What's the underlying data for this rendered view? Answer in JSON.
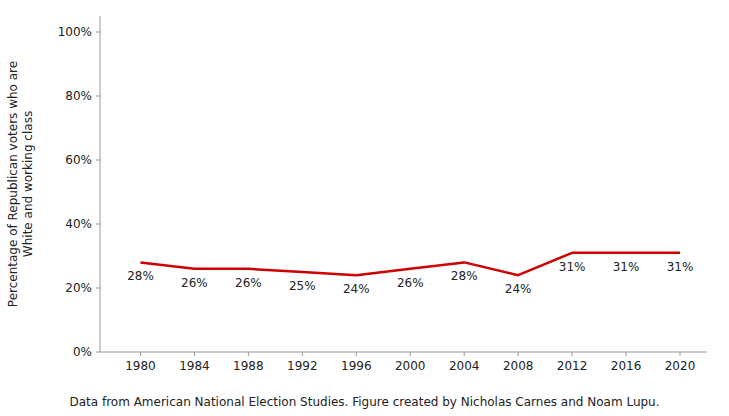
{
  "chart_data": {
    "type": "line",
    "x": [
      1980,
      1984,
      1988,
      1992,
      1996,
      2000,
      2004,
      2008,
      2012,
      2016,
      2020
    ],
    "values": [
      0.28,
      0.26,
      0.26,
      0.25,
      0.24,
      0.26,
      0.28,
      0.24,
      0.31,
      0.31,
      0.31
    ],
    "value_labels": [
      "28%",
      "26%",
      "26%",
      "25%",
      "24%",
      "26%",
      "28%",
      "24%",
      "31%",
      "31%",
      "31%"
    ],
    "data_labels": true,
    "color": "#cc0000",
    "ylabel": "Percentage of Republican voters who are\nWhite and working class",
    "xlim": [
      1977,
      2022
    ],
    "xticks": [
      1980,
      1984,
      1988,
      1992,
      1996,
      2000,
      2004,
      2008,
      2012,
      2016,
      2020
    ],
    "ylim": [
      0.0,
      1.05
    ],
    "yticks": [
      {
        "value": 0.0,
        "label": "0%"
      },
      {
        "value": 0.2,
        "label": "20%"
      },
      {
        "value": 0.4,
        "label": "40%"
      },
      {
        "value": 0.6,
        "label": "60%"
      },
      {
        "value": 0.8,
        "label": "80%"
      },
      {
        "value": 1.0,
        "label": "100%"
      }
    ],
    "grid": false,
    "caption": "Data from American National Election Studies. Figure created by Nicholas Carnes and Noam Lupu."
  }
}
